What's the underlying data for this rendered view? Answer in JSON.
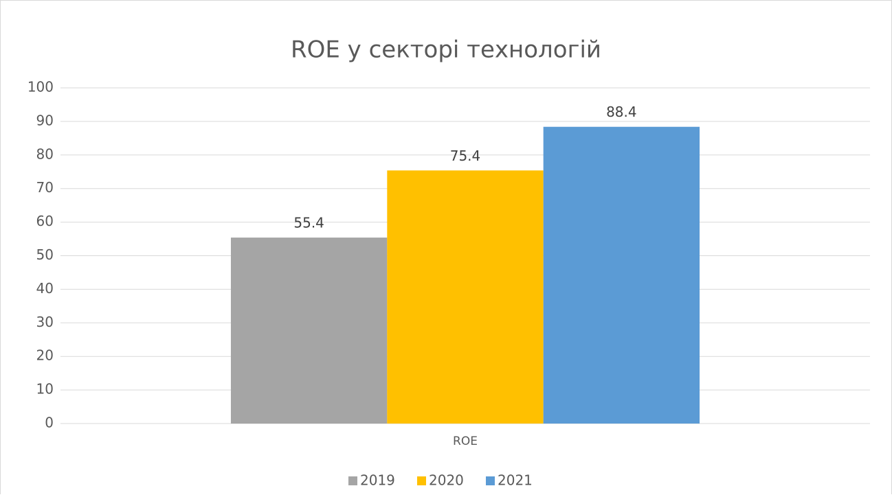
{
  "chart_data": {
    "type": "bar",
    "title": "ROE у секторі технологій",
    "categories": [
      "ROE"
    ],
    "series": [
      {
        "name": "2019",
        "color": "#a5a5a5",
        "values": [
          55.4
        ]
      },
      {
        "name": "2020",
        "color": "#ffc000",
        "values": [
          75.4
        ]
      },
      {
        "name": "2021",
        "color": "#5b9bd5",
        "values": [
          88.4
        ]
      }
    ],
    "ylim": [
      0,
      100
    ],
    "yticks": [
      0,
      10,
      20,
      30,
      40,
      50,
      60,
      70,
      80,
      90,
      100
    ],
    "grid": true,
    "legend": "bottom"
  }
}
